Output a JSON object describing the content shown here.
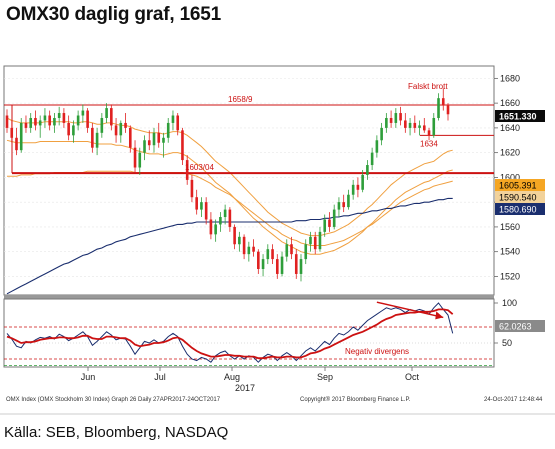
{
  "title": "OMX30 daglig graf, 1651",
  "source": "Källa: SEB, Bloomberg, NASDAQ",
  "footer": {
    "left": "OMX Index  (OMX Stockholm 30 Index)  Graph 26  Daily 27APR2017-24OCT2017",
    "middle": "Copyright® 2017 Bloomberg Finance L.P.",
    "right": "24-Oct-2017  12:48:44"
  },
  "colors": {
    "up_candle": "#2e9e3a",
    "down_candle": "#e02020",
    "ma_fast": "#f0a040",
    "ma_slow": "#1a2e6e",
    "resistance": "#cc1111",
    "rsi": "#1a2e6e",
    "rsi_smooth": "#cc1111",
    "label_price": "#0a0a0a",
    "label_ma1": "#f5a623",
    "label_ma2": "#f2d29a",
    "label_ma3": "#1a2e6e"
  },
  "chart_data": [
    {
      "type": "candlestick",
      "ylim": [
        1505,
        1690
      ],
      "yticks": [
        1520,
        1540,
        1560,
        1580,
        1600,
        1620,
        1640,
        1660,
        1680
      ],
      "x_labels": [
        "Jun",
        "Jul",
        "Aug",
        "Sep",
        "Oct"
      ],
      "x_sublabel": "2017",
      "candles": [
        [
          1650,
          1655,
          1636,
          1640
        ],
        [
          1640,
          1646,
          1628,
          1632
        ],
        [
          1632,
          1640,
          1618,
          1622
        ],
        [
          1622,
          1648,
          1620,
          1644
        ],
        [
          1644,
          1650,
          1636,
          1640
        ],
        [
          1640,
          1652,
          1636,
          1648
        ],
        [
          1648,
          1654,
          1638,
          1642
        ],
        [
          1642,
          1650,
          1632,
          1646
        ],
        [
          1646,
          1656,
          1640,
          1650
        ],
        [
          1650,
          1654,
          1638,
          1642
        ],
        [
          1642,
          1652,
          1636,
          1648
        ],
        [
          1648,
          1657,
          1642,
          1652
        ],
        [
          1652,
          1656,
          1640,
          1644
        ],
        [
          1644,
          1650,
          1630,
          1634
        ],
        [
          1634,
          1646,
          1628,
          1642
        ],
        [
          1642,
          1654,
          1638,
          1650
        ],
        [
          1650,
          1659,
          1644,
          1654
        ],
        [
          1654,
          1656,
          1636,
          1640
        ],
        [
          1640,
          1644,
          1620,
          1624
        ],
        [
          1624,
          1640,
          1618,
          1636
        ],
        [
          1636,
          1652,
          1632,
          1648
        ],
        [
          1648,
          1660,
          1644,
          1656
        ],
        [
          1656,
          1659,
          1638,
          1642
        ],
        [
          1642,
          1648,
          1628,
          1634
        ],
        [
          1634,
          1646,
          1628,
          1644
        ],
        [
          1644,
          1652,
          1636,
          1640
        ],
        [
          1640,
          1642,
          1620,
          1624
        ],
        [
          1624,
          1630,
          1604,
          1608
        ],
        [
          1608,
          1624,
          1602,
          1620
        ],
        [
          1620,
          1634,
          1614,
          1630
        ],
        [
          1630,
          1638,
          1622,
          1626
        ],
        [
          1626,
          1640,
          1620,
          1636
        ],
        [
          1636,
          1644,
          1624,
          1628
        ],
        [
          1628,
          1636,
          1616,
          1632
        ],
        [
          1632,
          1648,
          1628,
          1644
        ],
        [
          1644,
          1654,
          1638,
          1650
        ],
        [
          1650,
          1652,
          1634,
          1638
        ],
        [
          1638,
          1640,
          1610,
          1614
        ],
        [
          1614,
          1618,
          1594,
          1598
        ],
        [
          1598,
          1602,
          1580,
          1584
        ],
        [
          1584,
          1590,
          1570,
          1574
        ],
        [
          1574,
          1584,
          1568,
          1580
        ],
        [
          1580,
          1584,
          1562,
          1566
        ],
        [
          1566,
          1572,
          1550,
          1554
        ],
        [
          1554,
          1566,
          1548,
          1562
        ],
        [
          1562,
          1572,
          1556,
          1568
        ],
        [
          1568,
          1578,
          1562,
          1574
        ],
        [
          1574,
          1576,
          1556,
          1560
        ],
        [
          1560,
          1562,
          1542,
          1546
        ],
        [
          1546,
          1556,
          1540,
          1552
        ],
        [
          1552,
          1554,
          1534,
          1538
        ],
        [
          1538,
          1548,
          1532,
          1544
        ],
        [
          1544,
          1550,
          1536,
          1540
        ],
        [
          1540,
          1542,
          1522,
          1526
        ],
        [
          1526,
          1538,
          1520,
          1534
        ],
        [
          1534,
          1546,
          1530,
          1542
        ],
        [
          1542,
          1546,
          1530,
          1534
        ],
        [
          1534,
          1538,
          1518,
          1522
        ],
        [
          1522,
          1540,
          1520,
          1536
        ],
        [
          1536,
          1550,
          1532,
          1546
        ],
        [
          1546,
          1552,
          1534,
          1538
        ],
        [
          1538,
          1542,
          1518,
          1522
        ],
        [
          1522,
          1538,
          1516,
          1534
        ],
        [
          1534,
          1550,
          1530,
          1546
        ],
        [
          1546,
          1556,
          1540,
          1552
        ],
        [
          1552,
          1556,
          1538,
          1542
        ],
        [
          1542,
          1560,
          1540,
          1556
        ],
        [
          1556,
          1570,
          1552,
          1566
        ],
        [
          1566,
          1572,
          1556,
          1560
        ],
        [
          1560,
          1578,
          1558,
          1574
        ],
        [
          1574,
          1584,
          1568,
          1580
        ],
        [
          1580,
          1586,
          1572,
          1576
        ],
        [
          1576,
          1590,
          1574,
          1586
        ],
        [
          1586,
          1598,
          1582,
          1594
        ],
        [
          1594,
          1600,
          1584,
          1590
        ],
        [
          1590,
          1606,
          1588,
          1602
        ],
        [
          1602,
          1614,
          1598,
          1610
        ],
        [
          1610,
          1624,
          1606,
          1620
        ],
        [
          1620,
          1634,
          1616,
          1630
        ],
        [
          1630,
          1644,
          1626,
          1640
        ],
        [
          1640,
          1652,
          1636,
          1648
        ],
        [
          1648,
          1654,
          1640,
          1644
        ],
        [
          1644,
          1656,
          1640,
          1652
        ],
        [
          1652,
          1657,
          1642,
          1646
        ],
        [
          1646,
          1652,
          1636,
          1640
        ],
        [
          1640,
          1648,
          1634,
          1644
        ],
        [
          1644,
          1650,
          1636,
          1640
        ],
        [
          1640,
          1646,
          1634,
          1642
        ],
        [
          1642,
          1648,
          1636,
          1638
        ],
        [
          1638,
          1640,
          1630,
          1634
        ],
        [
          1634,
          1652,
          1632,
          1648
        ],
        [
          1648,
          1668,
          1646,
          1664
        ],
        [
          1664,
          1672,
          1654,
          1658
        ],
        [
          1658,
          1660,
          1646,
          1651
        ]
      ],
      "series": [
        {
          "name": "",
          "values": [
            1648,
            1646,
            1645,
            1644,
            1644,
            1644,
            1644,
            1644,
            1645,
            1645,
            1645,
            1645,
            1645,
            1645,
            1644,
            1644,
            1645,
            1645,
            1644,
            1643,
            1643,
            1644,
            1644,
            1643,
            1642,
            1642,
            1641,
            1639,
            1638,
            1637,
            1636,
            1636,
            1636,
            1635,
            1636,
            1637,
            1637,
            1636,
            1634,
            1631,
            1628,
            1625,
            1621,
            1617,
            1613,
            1610,
            1607,
            1604,
            1600,
            1596,
            1592,
            1588,
            1584,
            1580,
            1576,
            1572,
            1569,
            1566,
            1563,
            1561,
            1559,
            1557,
            1555,
            1554,
            1553,
            1553,
            1553,
            1554,
            1555,
            1556,
            1558,
            1560,
            1562,
            1565,
            1568,
            1571,
            1575,
            1578,
            1582,
            1586,
            1590,
            1594,
            1597,
            1600,
            1603,
            1605,
            1607,
            1609,
            1611,
            1612,
            1613,
            1616,
            1619,
            1621,
            1622
          ]
        },
        {
          "name": "",
          "values": [
            1630,
            1629,
            1628,
            1628,
            1628,
            1628,
            1628,
            1629,
            1629,
            1629,
            1629,
            1629,
            1629,
            1629,
            1629,
            1629,
            1629,
            1629,
            1628,
            1627,
            1627,
            1627,
            1627,
            1626,
            1626,
            1625,
            1624,
            1622,
            1621,
            1620,
            1619,
            1619,
            1619,
            1618,
            1619,
            1620,
            1620,
            1619,
            1617,
            1614,
            1611,
            1608,
            1604,
            1600,
            1596,
            1593,
            1590,
            1587,
            1583,
            1579,
            1575,
            1571,
            1567,
            1564,
            1560,
            1557,
            1554,
            1551,
            1548,
            1546,
            1544,
            1542,
            1540,
            1539,
            1538,
            1538,
            1538,
            1539,
            1540,
            1541,
            1543,
            1545,
            1547,
            1550,
            1553,
            1556,
            1560,
            1563,
            1567,
            1571,
            1575,
            1578,
            1582,
            1585,
            1588,
            1590,
            1592,
            1594,
            1596,
            1597,
            1599,
            1601,
            1603,
            1605,
            1606
          ]
        },
        {
          "name": "",
          "values": [
            1601,
            1601,
            1601,
            1602,
            1602,
            1602,
            1603,
            1603,
            1603,
            1603,
            1604,
            1604,
            1604,
            1604,
            1604,
            1604,
            1604,
            1605,
            1605,
            1605,
            1605,
            1605,
            1605,
            1605,
            1605,
            1605,
            1605,
            1604,
            1604,
            1604,
            1604,
            1604,
            1604,
            1604,
            1604,
            1604,
            1604,
            1604,
            1603,
            1602,
            1601,
            1599,
            1597,
            1595,
            1592,
            1590,
            1588,
            1586,
            1583,
            1580,
            1577,
            1574,
            1571,
            1568,
            1565,
            1562,
            1559,
            1557,
            1554,
            1552,
            1550,
            1549,
            1547,
            1546,
            1545,
            1545,
            1545,
            1545,
            1546,
            1547,
            1548,
            1549,
            1551,
            1553,
            1555,
            1557,
            1560,
            1562,
            1565,
            1568,
            1571,
            1574,
            1577,
            1580,
            1582,
            1584,
            1586,
            1588,
            1590,
            1591,
            1593,
            1594,
            1595,
            1596,
            1597
          ]
        },
        {
          "name": "",
          "values": [
            1506,
            1508,
            1510,
            1512,
            1514,
            1516,
            1518,
            1520,
            1522,
            1524,
            1526,
            1528,
            1530,
            1531,
            1533,
            1535,
            1537,
            1538,
            1540,
            1542,
            1543,
            1545,
            1546,
            1548,
            1549,
            1550,
            1552,
            1553,
            1554,
            1555,
            1556,
            1557,
            1558,
            1559,
            1560,
            1561,
            1562,
            1562,
            1563,
            1563,
            1564,
            1564,
            1564,
            1564,
            1564,
            1564,
            1564,
            1564,
            1564,
            1564,
            1564,
            1564,
            1564,
            1564,
            1564,
            1564,
            1564,
            1564,
            1564,
            1564,
            1564,
            1565,
            1565,
            1565,
            1566,
            1566,
            1566,
            1567,
            1567,
            1568,
            1568,
            1569,
            1569,
            1570,
            1571,
            1571,
            1572,
            1573,
            1573,
            1574,
            1575,
            1575,
            1576,
            1577,
            1577,
            1578,
            1579,
            1579,
            1580,
            1580,
            1581,
            1582,
            1582,
            1583,
            1583
          ]
        }
      ],
      "annotations": {
        "resistance_label": "1658/9",
        "resistance_value": 1658.5,
        "support_label": "1603/04",
        "support_value": 1603.5,
        "small_support_label": "1634",
        "small_support_value": 1634,
        "false_break_label": "Falskt brott"
      },
      "right_labels": {
        "price": "1651.330",
        "ma1": "1605.391",
        "ma2": "1590.540",
        "ma3": "1580.690"
      }
    },
    {
      "type": "line",
      "title": "",
      "ylim": [
        20,
        105
      ],
      "yticks": [
        50,
        100
      ],
      "levels": [
        70,
        30
      ],
      "annotation": "Negativ divergens",
      "series": [
        {
          "name": "",
          "values": [
            62,
            55,
            46,
            44,
            52,
            50,
            54,
            57,
            56,
            58,
            55,
            61,
            58,
            53,
            56,
            60,
            64,
            58,
            47,
            52,
            58,
            64,
            60,
            54,
            56,
            55,
            46,
            36,
            44,
            52,
            50,
            54,
            50,
            52,
            58,
            62,
            58,
            46,
            36,
            30,
            28,
            32,
            30,
            26,
            34,
            38,
            40,
            34,
            30,
            34,
            30,
            34,
            32,
            26,
            32,
            36,
            34,
            28,
            34,
            38,
            34,
            28,
            34,
            40,
            44,
            40,
            46,
            52,
            48,
            56,
            62,
            60,
            64,
            70,
            66,
            72,
            78,
            82,
            86,
            90,
            94,
            92,
            94,
            92,
            88,
            92,
            90,
            92,
            90,
            86,
            94,
            100,
            92,
            85,
            62
          ]
        },
        {
          "name": "",
          "values": [
            58,
            56,
            53,
            50,
            51,
            51,
            52,
            54,
            55,
            56,
            56,
            57,
            57,
            56,
            56,
            57,
            59,
            59,
            56,
            55,
            55,
            58,
            58,
            57,
            56,
            56,
            53,
            48,
            46,
            47,
            48,
            50,
            50,
            51,
            53,
            56,
            57,
            54,
            49,
            44,
            40,
            37,
            35,
            33,
            33,
            34,
            35,
            35,
            34,
            34,
            33,
            33,
            33,
            31,
            31,
            32,
            33,
            32,
            32,
            33,
            33,
            32,
            32,
            34,
            37,
            38,
            40,
            43,
            45,
            48,
            51,
            54,
            57,
            60,
            62,
            64,
            67,
            70,
            73,
            77,
            80,
            82,
            85,
            86,
            87,
            88,
            88,
            89,
            89,
            89,
            90,
            92,
            92,
            91,
            86
          ]
        }
      ]
    }
  ]
}
